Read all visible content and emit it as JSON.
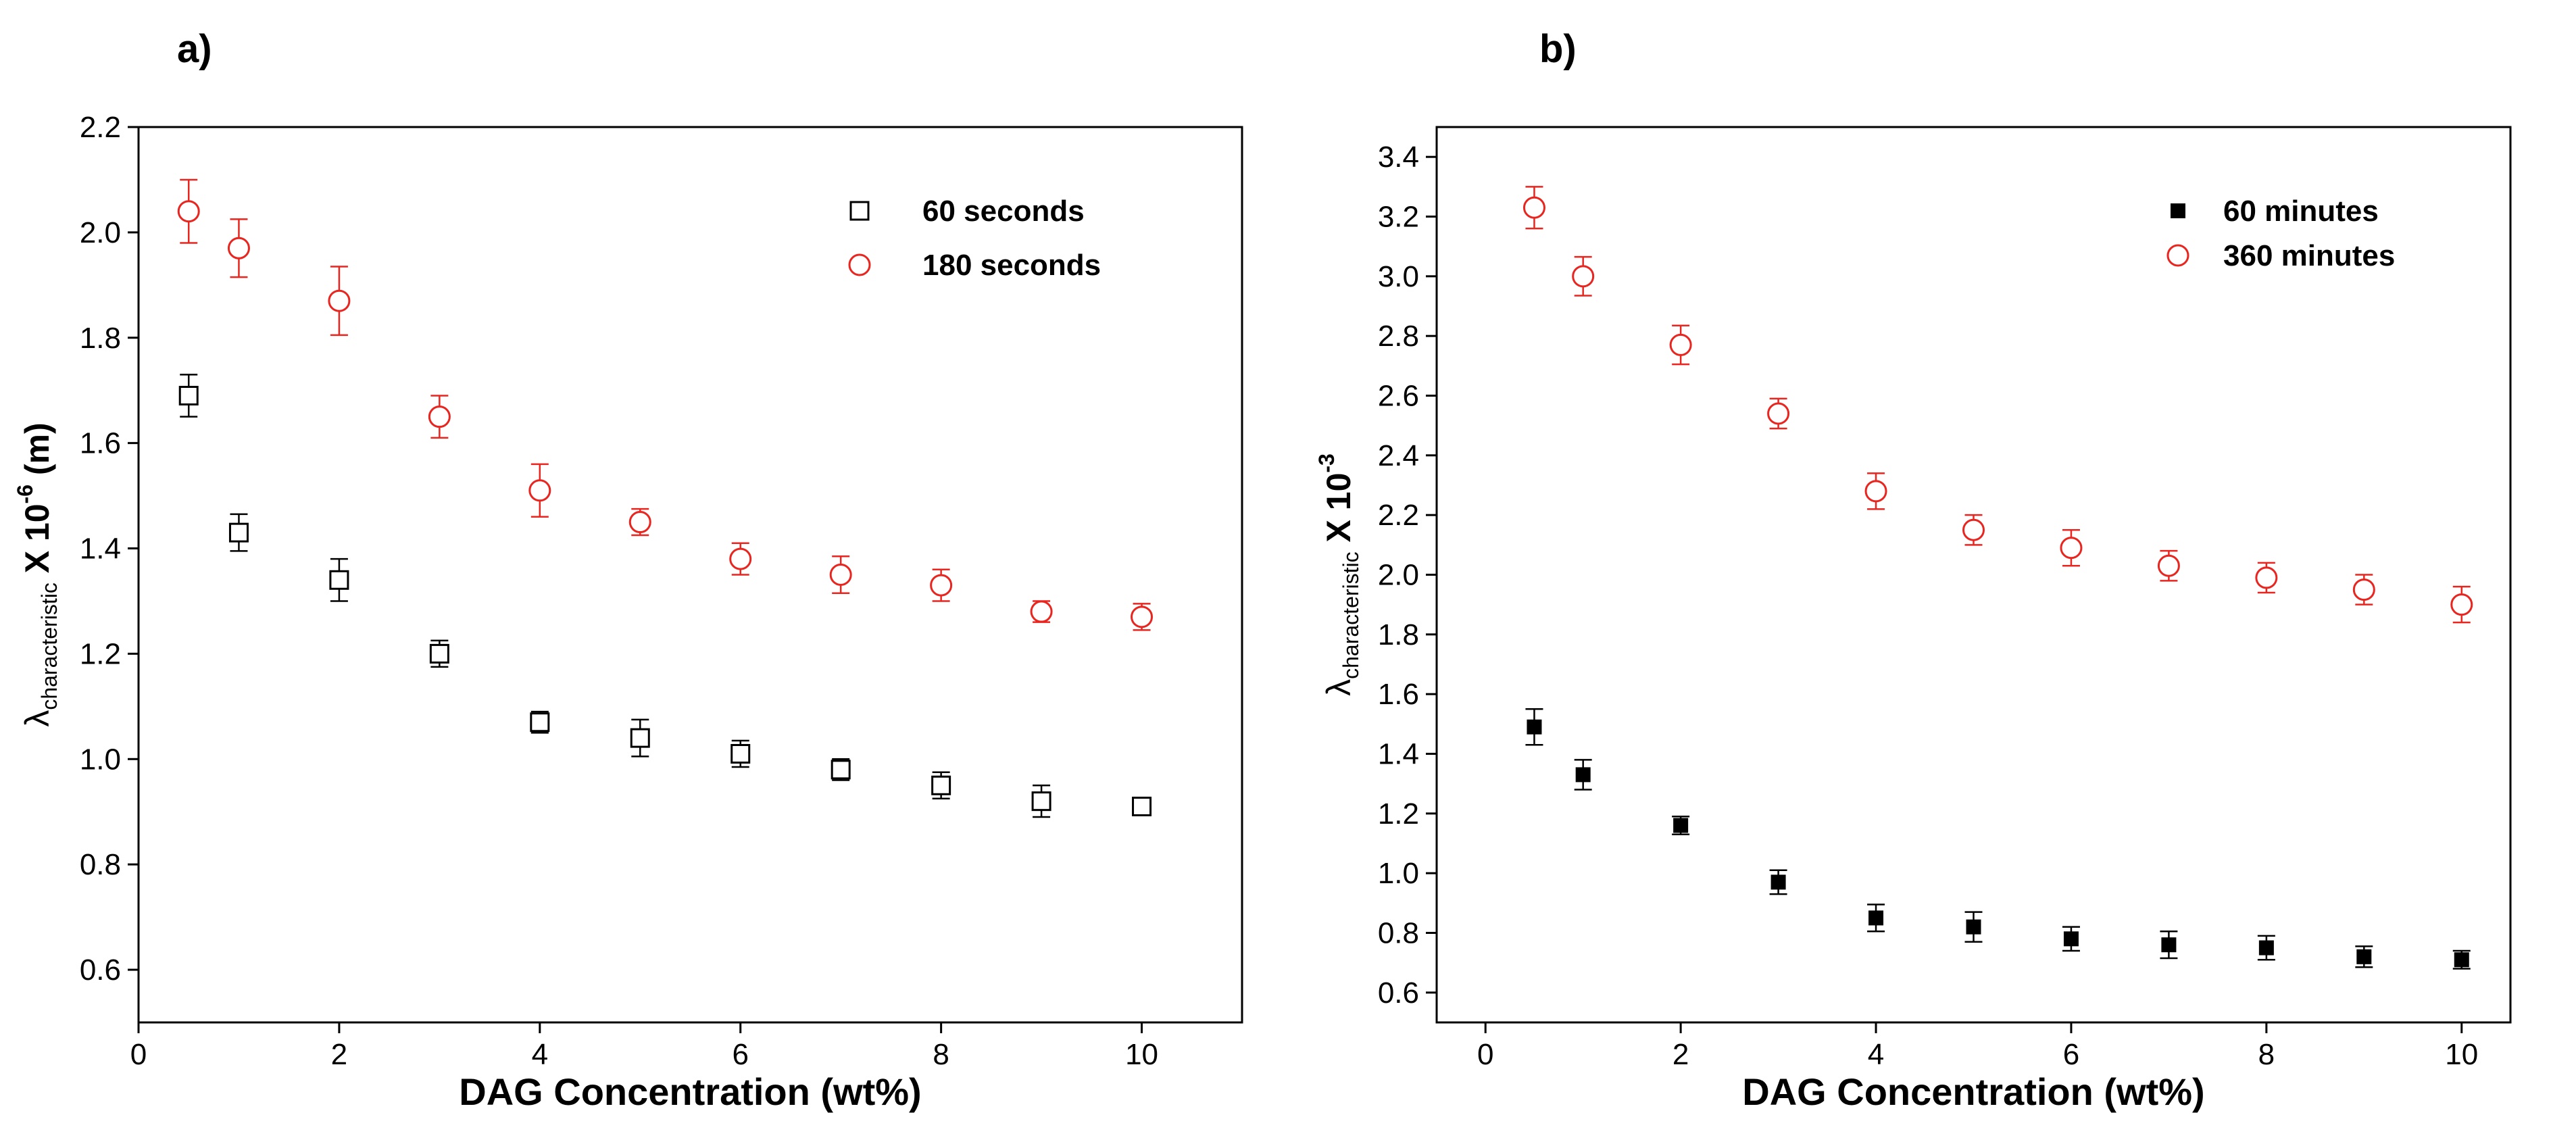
{
  "chart_data": [
    {
      "type": "scatter",
      "panel_label": "a)",
      "title": "",
      "xlabel": "DAG Concentration (wt%)",
      "ylabel": {
        "symbol": "λ",
        "subscript": "characteristic",
        "text": " X 10",
        "superscript": "-6",
        "unit": " (m)"
      },
      "xlim": [
        0,
        11
      ],
      "ylim": [
        0.5,
        2.2
      ],
      "xticks": [
        0,
        2,
        4,
        6,
        8,
        10
      ],
      "yticks": [
        0.6,
        0.8,
        1.0,
        1.2,
        1.4,
        1.6,
        1.8,
        2.0,
        2.2
      ],
      "ytick_labels": [
        "0.6",
        "0.8",
        "1.0",
        "1.2",
        "1.4",
        "1.6",
        "1.8",
        "2.0",
        "2.2"
      ],
      "grid": false,
      "legend_position": "top-right",
      "series": [
        {
          "name": "60 seconds",
          "marker": "open-square",
          "color": "#000000",
          "x": [
            0.5,
            1,
            2,
            3,
            4,
            5,
            6,
            7,
            8,
            9,
            10
          ],
          "y": [
            1.69,
            1.43,
            1.34,
            1.2,
            1.07,
            1.04,
            1.01,
            0.98,
            0.95,
            0.92,
            0.91
          ],
          "err": [
            0.04,
            0.035,
            0.04,
            0.025,
            0.02,
            0.035,
            0.025,
            0.02,
            0.025,
            0.03,
            0.0
          ]
        },
        {
          "name": "180 seconds",
          "marker": "open-circle",
          "color": "#e8251f",
          "x": [
            0.5,
            1,
            2,
            3,
            4,
            5,
            6,
            7,
            8,
            9,
            10
          ],
          "y": [
            2.04,
            1.97,
            1.87,
            1.65,
            1.51,
            1.45,
            1.38,
            1.35,
            1.33,
            1.28,
            1.27
          ],
          "err": [
            0.06,
            0.055,
            0.065,
            0.04,
            0.05,
            0.025,
            0.03,
            0.035,
            0.03,
            0.02,
            0.025
          ]
        }
      ]
    },
    {
      "type": "scatter",
      "panel_label": "b)",
      "title": "",
      "xlabel": "DAG Concentration (wt%)",
      "ylabel": {
        "symbol": "λ",
        "subscript": "characteristic",
        "text": " X 10",
        "superscript": "-3",
        "unit": ""
      },
      "xlim": [
        -0.5,
        10.5
      ],
      "ylim": [
        0.5,
        3.5
      ],
      "xticks": [
        0,
        2,
        4,
        6,
        8,
        10
      ],
      "yticks": [
        0.6,
        0.8,
        1.0,
        1.2,
        1.4,
        1.6,
        1.8,
        2.0,
        2.2,
        2.4,
        2.6,
        2.8,
        3.0,
        3.2,
        3.4
      ],
      "ytick_labels": [
        "0.6",
        "0.8",
        "1.0",
        "1.2",
        "1.4",
        "1.6",
        "1.8",
        "2.0",
        "2.2",
        "2.4",
        "2.6",
        "2.8",
        "3.0",
        "3.2",
        "3.4"
      ],
      "grid": false,
      "legend_position": "top-right",
      "series": [
        {
          "name": "60 minutes",
          "marker": "filled-square",
          "color": "#000000",
          "x": [
            0.5,
            1,
            2,
            3,
            4,
            5,
            6,
            7,
            8,
            9,
            10
          ],
          "y": [
            1.49,
            1.33,
            1.16,
            0.97,
            0.85,
            0.82,
            0.78,
            0.76,
            0.75,
            0.72,
            0.71
          ],
          "err": [
            0.06,
            0.05,
            0.03,
            0.04,
            0.045,
            0.05,
            0.04,
            0.045,
            0.04,
            0.035,
            0.03
          ]
        },
        {
          "name": "360 minutes",
          "marker": "open-circle",
          "color": "#e8251f",
          "x": [
            0.5,
            1,
            2,
            3,
            4,
            5,
            6,
            7,
            8,
            9,
            10
          ],
          "y": [
            3.23,
            3.0,
            2.77,
            2.54,
            2.28,
            2.15,
            2.09,
            2.03,
            1.99,
            1.95,
            1.9
          ],
          "err": [
            0.07,
            0.065,
            0.065,
            0.05,
            0.06,
            0.05,
            0.06,
            0.05,
            0.05,
            0.05,
            0.06
          ]
        }
      ]
    }
  ]
}
